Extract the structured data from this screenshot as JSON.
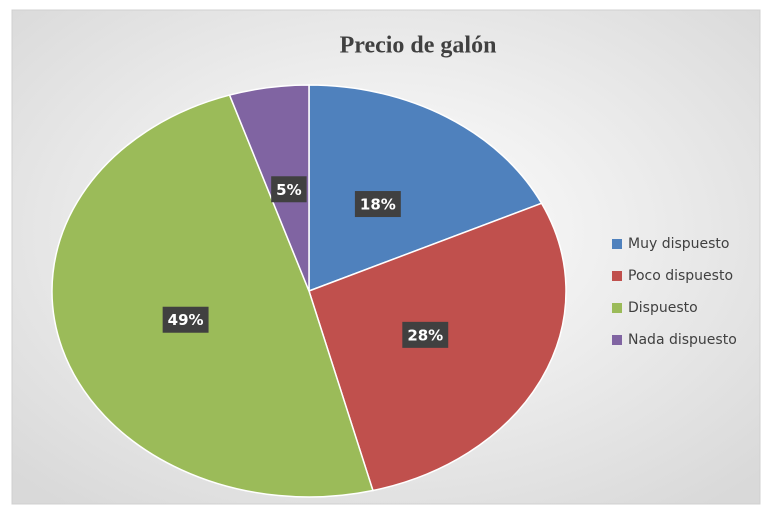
{
  "chart_data": {
    "type": "pie",
    "title": "Precio de galón",
    "categories": [
      "Muy dispuesto",
      "Poco dispuesto",
      "Dispuesto",
      "Nada dispuesto"
    ],
    "values": [
      18,
      28,
      49,
      5
    ],
    "value_labels": [
      "18%",
      "28%",
      "49%",
      "5%"
    ],
    "colors": [
      "#4f81bd",
      "#c0504d",
      "#9bbb59",
      "#8064a2"
    ],
    "legend": "right"
  }
}
